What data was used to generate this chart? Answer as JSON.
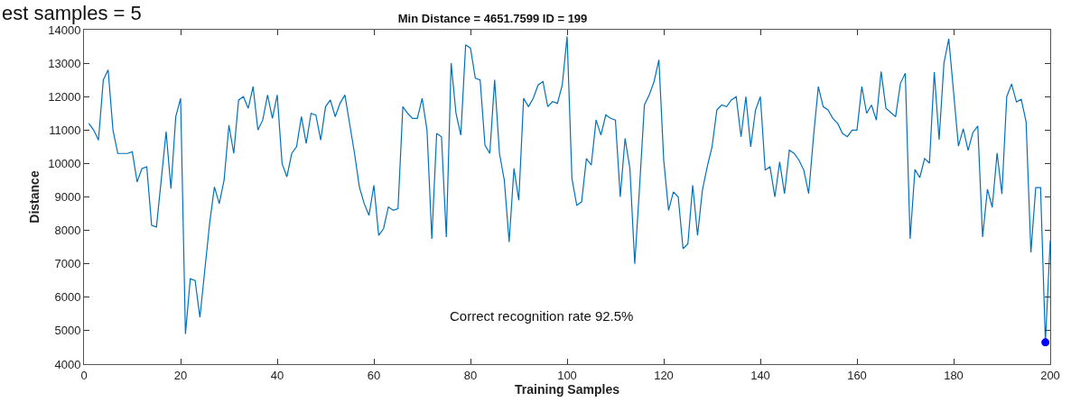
{
  "chart_data": {
    "type": "line",
    "title": "Min Distance = 4651.7599 ID = 199",
    "xlabel": "Training Samples",
    "ylabel": "Distance",
    "annotations": [
      "est samples = 5",
      "Correct recognition rate 92.5%"
    ],
    "series": [
      {
        "color": "#0072bd",
        "x": [
          1,
          2,
          3,
          4,
          5,
          6,
          7,
          9,
          10,
          11,
          12,
          13,
          14,
          15,
          17,
          18,
          19,
          20,
          21,
          22,
          23,
          24,
          26,
          27,
          28,
          29,
          30,
          31,
          32,
          33,
          34,
          35,
          36,
          37,
          38,
          39,
          40,
          41,
          42,
          43,
          44,
          45,
          46,
          47,
          48,
          49,
          50,
          51,
          52,
          53,
          54,
          56,
          57,
          58,
          59,
          60,
          61,
          62,
          63,
          64,
          65,
          66,
          67,
          68,
          69,
          70,
          71,
          72,
          73,
          74,
          75,
          76,
          77,
          78,
          79,
          80,
          81,
          82,
          83,
          84,
          85,
          86,
          87,
          88,
          89,
          90,
          91,
          92,
          93,
          94,
          95,
          96,
          97,
          98,
          99,
          100,
          101,
          102,
          103,
          104,
          105,
          106,
          107,
          108,
          109,
          110,
          111,
          112,
          113,
          114,
          115,
          116,
          117,
          118,
          119,
          120,
          121,
          122,
          123,
          124,
          125,
          126,
          127,
          128,
          129,
          130,
          131,
          132,
          133,
          134,
          135,
          136,
          137,
          138,
          139,
          140,
          141,
          142,
          143,
          144,
          145,
          146,
          147,
          148,
          149,
          150,
          151,
          152,
          153,
          154,
          155,
          156,
          157,
          158,
          159,
          160,
          161,
          162,
          163,
          164,
          165,
          166,
          168,
          169,
          170,
          171,
          172,
          173,
          174,
          175,
          176,
          177,
          178,
          179,
          181,
          182,
          183,
          184,
          185,
          186,
          187,
          188,
          189,
          190,
          191,
          192,
          193,
          194,
          195,
          196,
          197,
          198,
          199,
          200
        ],
        "values": [
          11200,
          11000,
          10700,
          12500,
          12800,
          11000,
          10300,
          10300,
          10350,
          9450,
          9850,
          9900,
          8150,
          8100,
          10950,
          9250,
          11400,
          11950,
          4900,
          6550,
          6500,
          5400,
          8200,
          9300,
          8800,
          9500,
          11150,
          10300,
          11900,
          12000,
          11650,
          12300,
          11000,
          11300,
          12050,
          11350,
          12050,
          10000,
          9600,
          10300,
          10500,
          11400,
          10600,
          11500,
          11450,
          10700,
          11700,
          11900,
          11400,
          11800,
          12050,
          10300,
          9300,
          8800,
          8450,
          9350,
          7850,
          8050,
          8700,
          8600,
          8650,
          11700,
          11500,
          11350,
          11350,
          11950,
          11000,
          7750,
          10900,
          10800,
          7800,
          13000,
          11500,
          10850,
          13550,
          13450,
          12550,
          12500,
          10550,
          10300,
          12500,
          10300,
          9500,
          7650,
          9850,
          8900,
          11950,
          11700,
          11950,
          12350,
          12450,
          11700,
          11850,
          11800,
          12350,
          13800,
          9550,
          8750,
          8850,
          10150,
          9950,
          11300,
          10850,
          11450,
          11350,
          11300,
          9000,
          10750,
          9850,
          7000,
          9300,
          11750,
          12050,
          12450,
          13100,
          10100,
          8600,
          9150,
          9000,
          7450,
          7600,
          9350,
          7850,
          9200,
          9900,
          10500,
          11600,
          11750,
          11700,
          11900,
          12000,
          10800,
          12000,
          10500,
          11600,
          12000,
          9800,
          9900,
          9000,
          10050,
          9100,
          10400,
          10300,
          10100,
          9800,
          9100,
          10800,
          12300,
          11700,
          11600,
          11350,
          11200,
          10900,
          10800,
          11000,
          11000,
          12300,
          11500,
          11750,
          11300,
          12750,
          11650,
          11400,
          12400,
          12700,
          7750,
          9820,
          9580,
          10150,
          10010,
          12730,
          10710,
          13000,
          13730,
          10520,
          11040,
          10390,
          10930,
          11120,
          7800,
          9230,
          8690,
          10310,
          9090,
          12000,
          12380,
          11840,
          11920,
          11250,
          7340,
          9280,
          9280,
          4651.7599,
          7700
        ]
      },
      {
        "type": "scatter",
        "color": "#0000ff",
        "marker": "circle",
        "x": [
          199
        ],
        "values": [
          4651.7599
        ]
      }
    ],
    "xlim": [
      0,
      200
    ],
    "xticks": [
      0,
      20,
      40,
      60,
      80,
      100,
      120,
      140,
      160,
      180,
      200
    ],
    "ylim": [
      4000,
      14000
    ],
    "yticks": [
      4000,
      5000,
      6000,
      7000,
      8000,
      9000,
      10000,
      11000,
      12000,
      13000,
      14000
    ],
    "tick_labels": true
  }
}
